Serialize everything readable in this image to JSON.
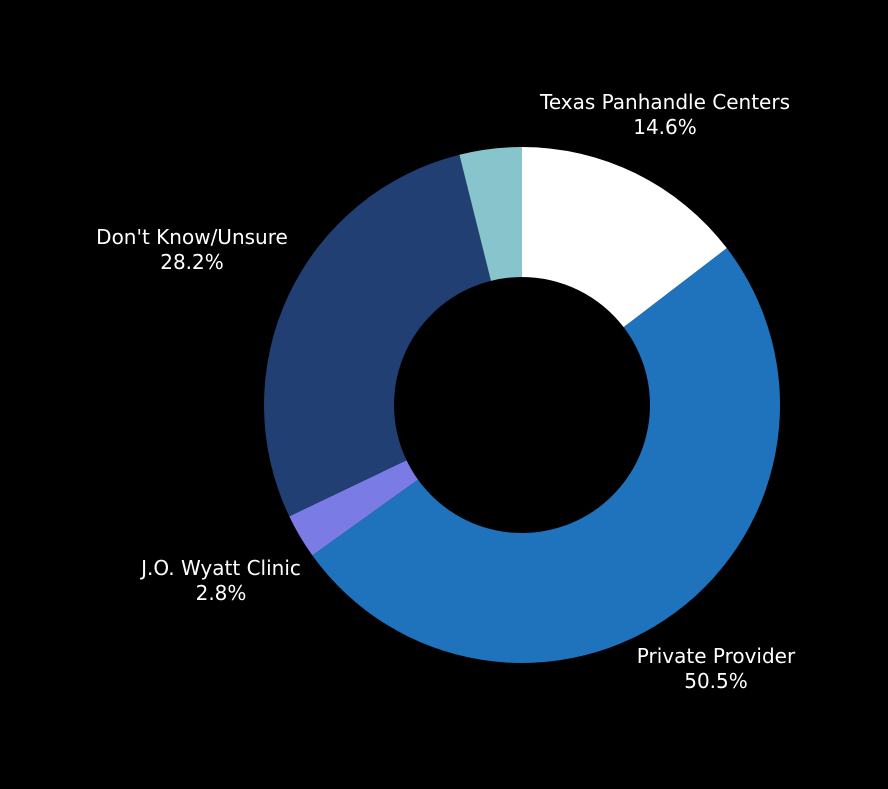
{
  "chart_data": {
    "type": "pie",
    "variant": "donut",
    "title": "",
    "legend": "none",
    "slices": [
      {
        "label": "Texas Panhandle Centers",
        "value": 14.6,
        "value_label": "14.6%",
        "color": "#ffffff"
      },
      {
        "label": "Private Provider",
        "value": 50.5,
        "value_label": "50.5%",
        "color": "#1f73bc"
      },
      {
        "label": "J.O. Wyatt Clinic",
        "value": 2.8,
        "value_label": "2.8%",
        "color": "#7b7be6"
      },
      {
        "label": "Don't Know/Unsure",
        "value": 28.2,
        "value_label": "28.2%",
        "color": "#213f73"
      },
      {
        "label": "",
        "value": 3.9,
        "value_label": "",
        "color": "#87c4cc"
      }
    ]
  },
  "colors": {
    "background": "#000000",
    "text": "#ffffff"
  }
}
